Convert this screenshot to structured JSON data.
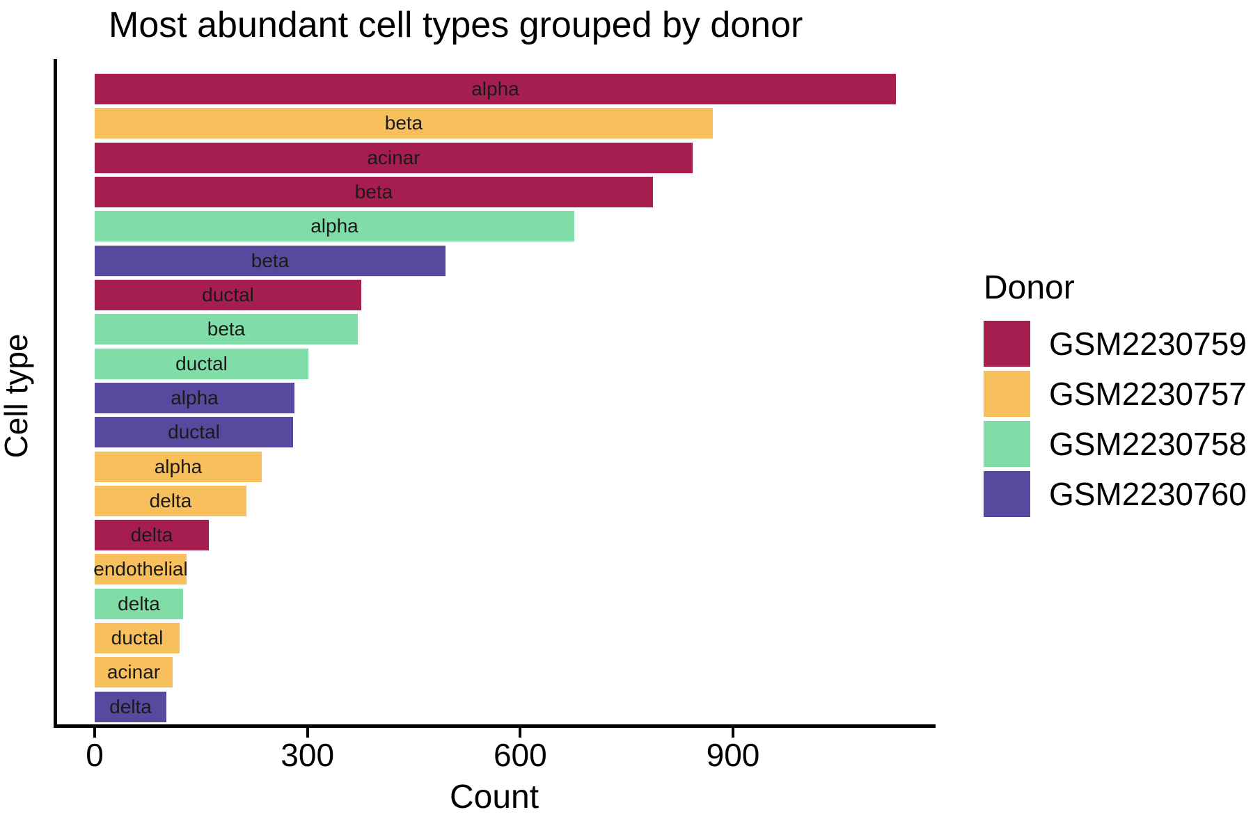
{
  "title": "Most abundant cell types grouped by donor",
  "chart_data": {
    "type": "bar",
    "orientation": "horizontal",
    "title": "Most abundant cell types grouped by donor",
    "xlabel": "Count",
    "ylabel": "Cell type",
    "xlim": [
      0,
      1186
    ],
    "xticks": [
      0,
      300,
      600,
      900
    ],
    "grid": false,
    "bar_labels_inside": true,
    "legend": {
      "title": "Donor",
      "position": "right",
      "entries": [
        {
          "label": "GSM2230759",
          "color": "#A51E4F"
        },
        {
          "label": "GSM2230757",
          "color": "#F7C05C"
        },
        {
          "label": "GSM2230758",
          "color": "#80DDA8"
        },
        {
          "label": "GSM2230760",
          "color": "#574A9E"
        }
      ]
    },
    "bars": [
      {
        "cell_type": "alpha",
        "donor": "GSM2230759",
        "value": 1130
      },
      {
        "cell_type": "beta",
        "donor": "GSM2230757",
        "value": 872
      },
      {
        "cell_type": "acinar",
        "donor": "GSM2230759",
        "value": 843
      },
      {
        "cell_type": "beta",
        "donor": "GSM2230759",
        "value": 787
      },
      {
        "cell_type": "alpha",
        "donor": "GSM2230758",
        "value": 676
      },
      {
        "cell_type": "beta",
        "donor": "GSM2230760",
        "value": 495
      },
      {
        "cell_type": "ductal",
        "donor": "GSM2230759",
        "value": 376
      },
      {
        "cell_type": "beta",
        "donor": "GSM2230758",
        "value": 371
      },
      {
        "cell_type": "ductal",
        "donor": "GSM2230758",
        "value": 301
      },
      {
        "cell_type": "alpha",
        "donor": "GSM2230760",
        "value": 282
      },
      {
        "cell_type": "ductal",
        "donor": "GSM2230760",
        "value": 280
      },
      {
        "cell_type": "alpha",
        "donor": "GSM2230757",
        "value": 236
      },
      {
        "cell_type": "delta",
        "donor": "GSM2230757",
        "value": 214
      },
      {
        "cell_type": "delta",
        "donor": "GSM2230759",
        "value": 161
      },
      {
        "cell_type": "endothelial",
        "donor": "GSM2230757",
        "value": 130
      },
      {
        "cell_type": "delta",
        "donor": "GSM2230758",
        "value": 125
      },
      {
        "cell_type": "ductal",
        "donor": "GSM2230757",
        "value": 120
      },
      {
        "cell_type": "acinar",
        "donor": "GSM2230757",
        "value": 110
      },
      {
        "cell_type": "delta",
        "donor": "GSM2230760",
        "value": 101
      }
    ]
  },
  "colors": {
    "background": "#FFFFFF",
    "axis": "#000000",
    "bar_label_text": "#1A1A1A"
  }
}
